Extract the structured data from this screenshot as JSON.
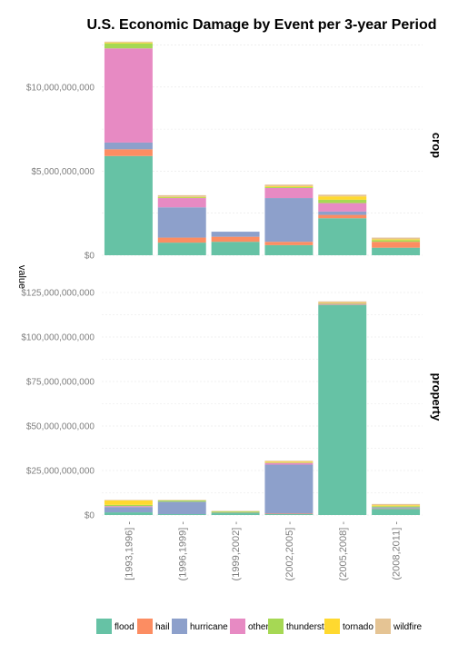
{
  "chart_data": {
    "type": "bar",
    "stacked": true,
    "title": "U.S. Economic  Damage by Event per 3-year Period",
    "ylabel": "value",
    "xlabel": "",
    "categories": [
      "[1993,1996]",
      "(1996,1999]",
      "(1999,2002]",
      "(2002,2005]",
      "(2005,2008]",
      "(2008,2011]"
    ],
    "legend_position": "bottom",
    "grid": true,
    "series_meta": [
      {
        "name": "flood",
        "color": "#66c2a5"
      },
      {
        "name": "hail",
        "color": "#fc8d62"
      },
      {
        "name": "hurricane",
        "color": "#8da0cb"
      },
      {
        "name": "other",
        "color": "#e78ac3"
      },
      {
        "name": "thunderstorm",
        "color": "#a6d854"
      },
      {
        "name": "tornado",
        "color": "#ffd92f"
      },
      {
        "name": "wildfire",
        "color": "#e5c494"
      }
    ],
    "panels": [
      {
        "name": "crop",
        "ylim": [
          0,
          12800000000
        ],
        "yticks": [
          0,
          5000000000,
          10000000000
        ],
        "ytick_labels": [
          "$0",
          "$5,000,000,000",
          "$10,000,000,000"
        ],
        "series": [
          {
            "name": "flood",
            "values": [
              5900000000,
              750000000,
              800000000,
              600000000,
              2200000000,
              450000000
            ]
          },
          {
            "name": "hail",
            "values": [
              400000000,
              300000000,
              300000000,
              200000000,
              200000000,
              350000000
            ]
          },
          {
            "name": "hurricane",
            "values": [
              400000000,
              1800000000,
              300000000,
              2600000000,
              200000000,
              0
            ]
          },
          {
            "name": "other",
            "values": [
              5600000000,
              550000000,
              0,
              600000000,
              500000000,
              0
            ]
          },
          {
            "name": "thunderstorm",
            "values": [
              300000000,
              50000000,
              0,
              50000000,
              200000000,
              100000000
            ]
          },
          {
            "name": "tornado",
            "values": [
              50000000,
              20000000,
              0,
              50000000,
              200000000,
              50000000
            ]
          },
          {
            "name": "wildfire",
            "values": [
              50000000,
              100000000,
              0,
              100000000,
              100000000,
              100000000
            ]
          }
        ]
      },
      {
        "name": "property",
        "ylim": [
          0,
          125000000000
        ],
        "yticks": [
          0,
          25000000000,
          50000000000,
          75000000000,
          100000000000,
          125000000000
        ],
        "ytick_labels": [
          "$0",
          "$25,000,000,000",
          "$50,000,000,000",
          "$75,000,000,000",
          "$100,000,000,000",
          "$125,000,000,000"
        ],
        "series": [
          {
            "name": "flood",
            "values": [
              1500000000,
              500000000,
              1000000000,
              500000000,
              118000000000,
              3500000000
            ]
          },
          {
            "name": "hail",
            "values": [
              0,
              0,
              0,
              300000000,
              200000000,
              200000000
            ]
          },
          {
            "name": "hurricane",
            "values": [
              3000000000,
              7000000000,
              300000000,
              27500000000,
              300000000,
              700000000
            ]
          },
          {
            "name": "other",
            "values": [
              500000000,
              0,
              0,
              1000000000,
              200000000,
              0
            ]
          },
          {
            "name": "thunderstorm",
            "values": [
              700000000,
              700000000,
              700000000,
              200000000,
              200000000,
              600000000
            ]
          },
          {
            "name": "tornado",
            "values": [
              2500000000,
              0,
              0,
              500000000,
              200000000,
              500000000
            ]
          },
          {
            "name": "wildfire",
            "values": [
              300000000,
              300000000,
              300000000,
              500000000,
              900000000,
              700000000
            ]
          }
        ]
      }
    ]
  }
}
